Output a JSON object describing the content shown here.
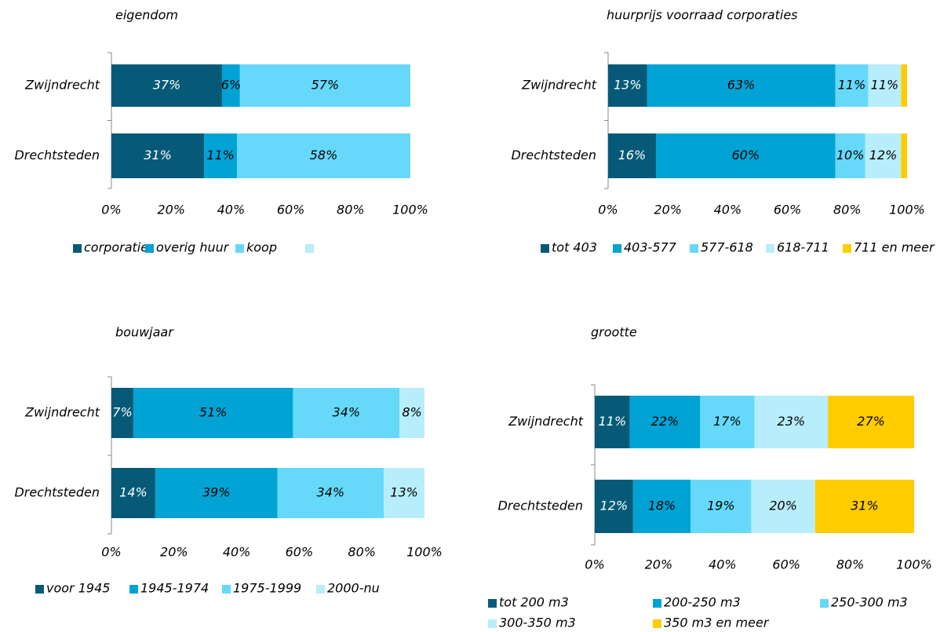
{
  "chart_data": [
    {
      "type": "stacked-bar",
      "title": "eigendom",
      "categories": [
        "Zwijndrecht",
        "Drechtsteden"
      ],
      "series": [
        {
          "name": "corporatie",
          "color": "#065a78",
          "values": [
            37,
            31
          ],
          "value_labels": [
            "37%",
            "31%"
          ]
        },
        {
          "name": "overig huur",
          "color": "#00a3d4",
          "values": [
            6,
            11
          ],
          "value_labels": [
            "6%",
            "11%"
          ]
        },
        {
          "name": "koop",
          "color": "#66d9fa",
          "values": [
            57,
            58
          ],
          "value_labels": [
            "57%",
            "58%"
          ]
        }
      ],
      "xlim": [
        0,
        100
      ],
      "xticks": [
        {
          "value": 0,
          "label": "0%"
        },
        {
          "value": 20,
          "label": "20%"
        },
        {
          "value": 40,
          "label": "40%"
        },
        {
          "value": 60,
          "label": "60%"
        },
        {
          "value": 80,
          "label": "80%"
        },
        {
          "value": 100,
          "label": "100%"
        }
      ]
    },
    {
      "type": "stacked-bar",
      "title": "huurprijs voorraad corporaties",
      "categories": [
        "Zwijndrecht",
        "Drechtsteden"
      ],
      "series": [
        {
          "name": "tot 403",
          "color": "#065a78",
          "values": [
            13,
            16
          ],
          "value_labels": [
            "13%",
            "16%"
          ]
        },
        {
          "name": "403-577",
          "color": "#00a3d4",
          "values": [
            63,
            60
          ],
          "value_labels": [
            "63%",
            "60%"
          ]
        },
        {
          "name": "577-618",
          "color": "#66d9fa",
          "values": [
            11,
            10
          ],
          "value_labels": [
            "11%",
            "10%"
          ]
        },
        {
          "name": "618-711",
          "color": "#b8edfb",
          "values": [
            11,
            12
          ],
          "value_labels": [
            "11%",
            "12%"
          ]
        },
        {
          "name": "711 en meer",
          "color": "#ffcc00",
          "values": [
            2,
            2
          ],
          "value_labels": [
            null,
            null
          ]
        }
      ],
      "xlim": [
        0,
        100
      ],
      "xticks": [
        {
          "value": 0,
          "label": "0%"
        },
        {
          "value": 20,
          "label": "20%"
        },
        {
          "value": 40,
          "label": "40%"
        },
        {
          "value": 60,
          "label": "60%"
        },
        {
          "value": 80,
          "label": "80%"
        },
        {
          "value": 100,
          "label": "100%"
        }
      ]
    },
    {
      "type": "stacked-bar",
      "title": "bouwjaar",
      "categories": [
        "Zwijndrecht",
        "Drechtsteden"
      ],
      "series": [
        {
          "name": "voor 1945",
          "color": "#065a78",
          "values": [
            7,
            14
          ],
          "value_labels": [
            "7%",
            "14%"
          ]
        },
        {
          "name": "1945-1974",
          "color": "#00a3d4",
          "values": [
            51,
            39
          ],
          "value_labels": [
            "51%",
            "39%"
          ]
        },
        {
          "name": "1975-1999",
          "color": "#66d9fa",
          "values": [
            34,
            34
          ],
          "value_labels": [
            "34%",
            "34%"
          ]
        },
        {
          "name": "2000-nu",
          "color": "#b8edfb",
          "values": [
            8,
            13
          ],
          "value_labels": [
            "8%",
            "13%"
          ]
        }
      ],
      "xlim": [
        0,
        100
      ],
      "xticks": [
        {
          "value": 0,
          "label": "0%"
        },
        {
          "value": 20,
          "label": "20%"
        },
        {
          "value": 40,
          "label": "40%"
        },
        {
          "value": 60,
          "label": "60%"
        },
        {
          "value": 80,
          "label": "80%"
        },
        {
          "value": 100,
          "label": "100%"
        }
      ]
    },
    {
      "type": "stacked-bar",
      "title": "grootte",
      "categories": [
        "Zwijndrecht",
        "Drechtsteden"
      ],
      "series": [
        {
          "name": "tot 200 m3",
          "color": "#065a78",
          "values": [
            11,
            12
          ],
          "value_labels": [
            "11%",
            "12%"
          ]
        },
        {
          "name": "200-250 m3",
          "color": "#00a3d4",
          "values": [
            22,
            18
          ],
          "value_labels": [
            "22%",
            "18%"
          ]
        },
        {
          "name": "250-300 m3",
          "color": "#66d9fa",
          "values": [
            17,
            19
          ],
          "value_labels": [
            "17%",
            "19%"
          ]
        },
        {
          "name": "300-350 m3",
          "color": "#b8edfb",
          "values": [
            23,
            20
          ],
          "value_labels": [
            "23%",
            "20%"
          ]
        },
        {
          "name": "350 m3 en meer",
          "color": "#ffcc00",
          "values": [
            27,
            31
          ],
          "value_labels": [
            "27%",
            "31%"
          ]
        }
      ],
      "xlim": [
        0,
        100
      ],
      "xticks": [
        {
          "value": 0,
          "label": "0%"
        },
        {
          "value": 20,
          "label": "20%"
        },
        {
          "value": 40,
          "label": "40%"
        },
        {
          "value": 60,
          "label": "60%"
        },
        {
          "value": 80,
          "label": "80%"
        },
        {
          "value": 100,
          "label": "100%"
        }
      ]
    }
  ]
}
